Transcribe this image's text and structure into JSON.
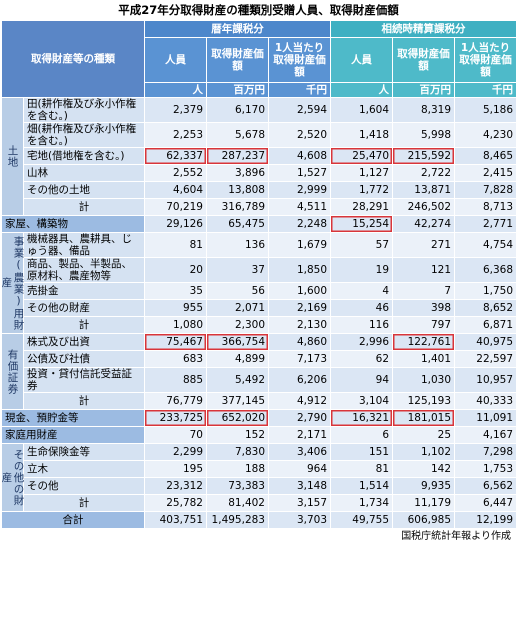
{
  "title": "平成27年分取得財産の種類別受贈人員、取得財産価額",
  "header": {
    "item": "取得財産等の種類",
    "groups": [
      "暦年課税分",
      "相続時精算課税分"
    ],
    "columns": [
      "人員",
      "取得財産価額",
      "1人当たり取得財産価額",
      "人員",
      "取得財産価額",
      "1人当たり取得財産価額"
    ],
    "units": [
      "人",
      "百万円",
      "千円",
      "人",
      "百万円",
      "千円"
    ]
  },
  "sections": [
    {
      "label": "土地",
      "rows": [
        {
          "label": "田(耕作権及び永小作権を含む。)",
          "values": [
            "2,379",
            "6,170",
            "2,594",
            "1,604",
            "8,319",
            "5,186"
          ]
        },
        {
          "label": "畑(耕作権及び永小作権を含む。)",
          "values": [
            "2,253",
            "5,678",
            "2,520",
            "1,418",
            "5,998",
            "4,230"
          ]
        },
        {
          "label": "宅地(借地権を含む。)",
          "values": [
            "62,337",
            "287,237",
            "4,608",
            "25,470",
            "215,592",
            "8,465"
          ]
        },
        {
          "label": "山林",
          "values": [
            "2,552",
            "3,896",
            "1,527",
            "1,127",
            "2,722",
            "2,415"
          ]
        },
        {
          "label": "その他の土地",
          "values": [
            "4,604",
            "13,808",
            "2,999",
            "1,772",
            "13,871",
            "7,828"
          ]
        },
        {
          "label": "計",
          "values": [
            "70,219",
            "316,789",
            "4,511",
            "28,291",
            "246,502",
            "8,713"
          ]
        }
      ]
    },
    {
      "rows": [
        {
          "label": "家屋、構築物",
          "values": [
            "29,126",
            "65,475",
            "2,248",
            "15,254",
            "42,274",
            "2,771"
          ]
        }
      ]
    },
    {
      "label": "事業(農業)用財産",
      "rows": [
        {
          "label": "機械器具、農耕具、じゅう器、備品",
          "values": [
            "81",
            "136",
            "1,679",
            "57",
            "271",
            "4,754"
          ]
        },
        {
          "label": "商品、製品、半製品、原材料、農産物等",
          "values": [
            "20",
            "37",
            "1,850",
            "19",
            "121",
            "6,368"
          ]
        },
        {
          "label": "売掛金",
          "values": [
            "35",
            "56",
            "1,600",
            "4",
            "7",
            "1,750"
          ]
        },
        {
          "label": "その他の財産",
          "values": [
            "955",
            "2,071",
            "2,169",
            "46",
            "398",
            "8,652"
          ]
        },
        {
          "label": "計",
          "values": [
            "1,080",
            "2,300",
            "2,130",
            "116",
            "797",
            "6,871"
          ]
        }
      ]
    },
    {
      "label": "有価証券",
      "rows": [
        {
          "label": "株式及び出資",
          "values": [
            "75,467",
            "366,754",
            "4,860",
            "2,996",
            "122,761",
            "40,975"
          ]
        },
        {
          "label": "公債及び社債",
          "values": [
            "683",
            "4,899",
            "7,173",
            "62",
            "1,401",
            "22,597"
          ]
        },
        {
          "label": "投資・貸付信託受益証券",
          "values": [
            "885",
            "5,492",
            "6,206",
            "94",
            "1,030",
            "10,957"
          ]
        },
        {
          "label": "計",
          "values": [
            "76,779",
            "377,145",
            "4,912",
            "3,104",
            "125,193",
            "40,333"
          ]
        }
      ]
    },
    {
      "rows": [
        {
          "label": "現金、預貯金等",
          "values": [
            "233,725",
            "652,020",
            "2,790",
            "16,321",
            "181,015",
            "11,091"
          ]
        }
      ]
    },
    {
      "rows": [
        {
          "label": "家庭用財産",
          "values": [
            "70",
            "152",
            "2,171",
            "6",
            "25",
            "4,167"
          ]
        }
      ]
    },
    {
      "label": "その他の財産",
      "rows": [
        {
          "label": "生命保険金等",
          "values": [
            "2,299",
            "7,830",
            "3,406",
            "151",
            "1,102",
            "7,298"
          ]
        },
        {
          "label": "立木",
          "values": [
            "195",
            "188",
            "964",
            "81",
            "142",
            "1,753"
          ]
        },
        {
          "label": "その他",
          "values": [
            "23,312",
            "73,383",
            "3,148",
            "1,514",
            "9,935",
            "6,562"
          ]
        },
        {
          "label": "計",
          "values": [
            "25,782",
            "81,402",
            "3,157",
            "1,734",
            "11,179",
            "6,447"
          ]
        }
      ]
    },
    {
      "rows": [
        {
          "label": "合計",
          "values": [
            "403,751",
            "1,495,283",
            "3,703",
            "49,755",
            "606,985",
            "12,199"
          ]
        }
      ]
    }
  ],
  "footer": "国税庁統計年報より作成"
}
